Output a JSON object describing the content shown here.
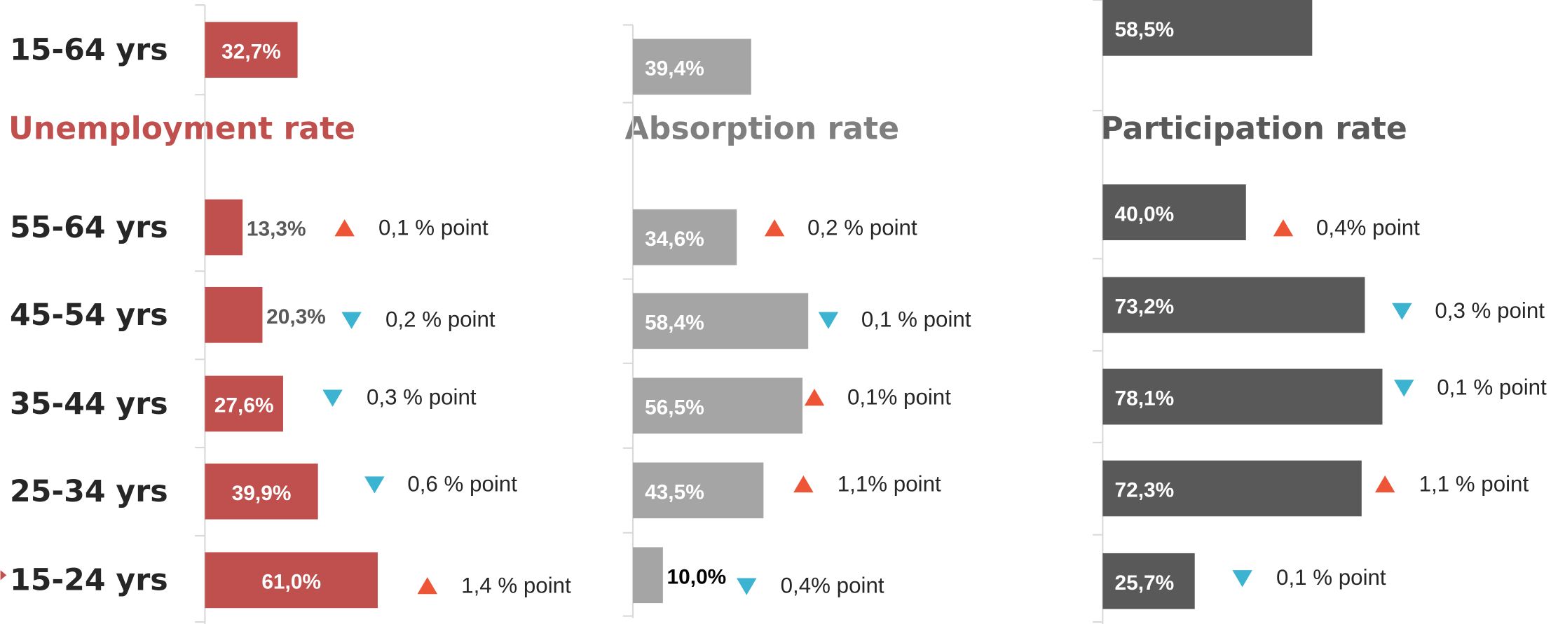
{
  "chart_data": [
    {
      "type": "bar",
      "title": "Unemployment rate",
      "color": "#c0504d",
      "categories": [
        "15-64 yrs",
        "55-64 yrs",
        "45-54 yrs",
        "35-44 yrs",
        "25-34 yrs",
        "15-24 yrs"
      ],
      "values": [
        32.7,
        13.3,
        20.3,
        27.6,
        39.9,
        61.0
      ],
      "value_labels": [
        "32,7%",
        "13,3%",
        "20,3%",
        "27,6%",
        "39,9%",
        "61,0%"
      ],
      "change_labels": [
        null,
        "0,1 % point",
        "0,2 % point",
        "0,3 % point",
        "0,6 % point",
        "1,4 % point"
      ],
      "change_directions": [
        null,
        "up",
        "down",
        "down",
        "down",
        "up"
      ],
      "xlim": [
        0,
        100
      ]
    },
    {
      "type": "bar",
      "title": "Absorption rate",
      "color": "#a5a5a5",
      "values": [
        39.4,
        34.6,
        58.4,
        56.5,
        43.5,
        10.0
      ],
      "value_labels": [
        "39,4%",
        "34,6%",
        "58,4%",
        "56,5%",
        "43,5%",
        "10,0%"
      ],
      "change_labels": [
        null,
        "0,2 % point",
        "0,1 % point",
        "0,1% point",
        "1,1% point",
        "0,4% point"
      ],
      "change_directions": [
        null,
        "up",
        "down",
        "up",
        "up",
        "down"
      ],
      "xlim": [
        0,
        100
      ]
    },
    {
      "type": "bar",
      "title": "Participation rate",
      "color": "#595959",
      "values": [
        58.5,
        40.0,
        73.2,
        78.1,
        72.3,
        25.7
      ],
      "value_labels": [
        "58,5%",
        "40,0%",
        "73,2%",
        "78,1%",
        "72,3%",
        "25,7%"
      ],
      "change_labels": [
        null,
        "0,4% point",
        "0,3 % point",
        "0,1 % point",
        "1,1 % point",
        "0,1 % point"
      ],
      "change_directions": [
        null,
        "up",
        "down",
        "down",
        "up",
        "down"
      ],
      "xlim": [
        0,
        100
      ]
    }
  ]
}
